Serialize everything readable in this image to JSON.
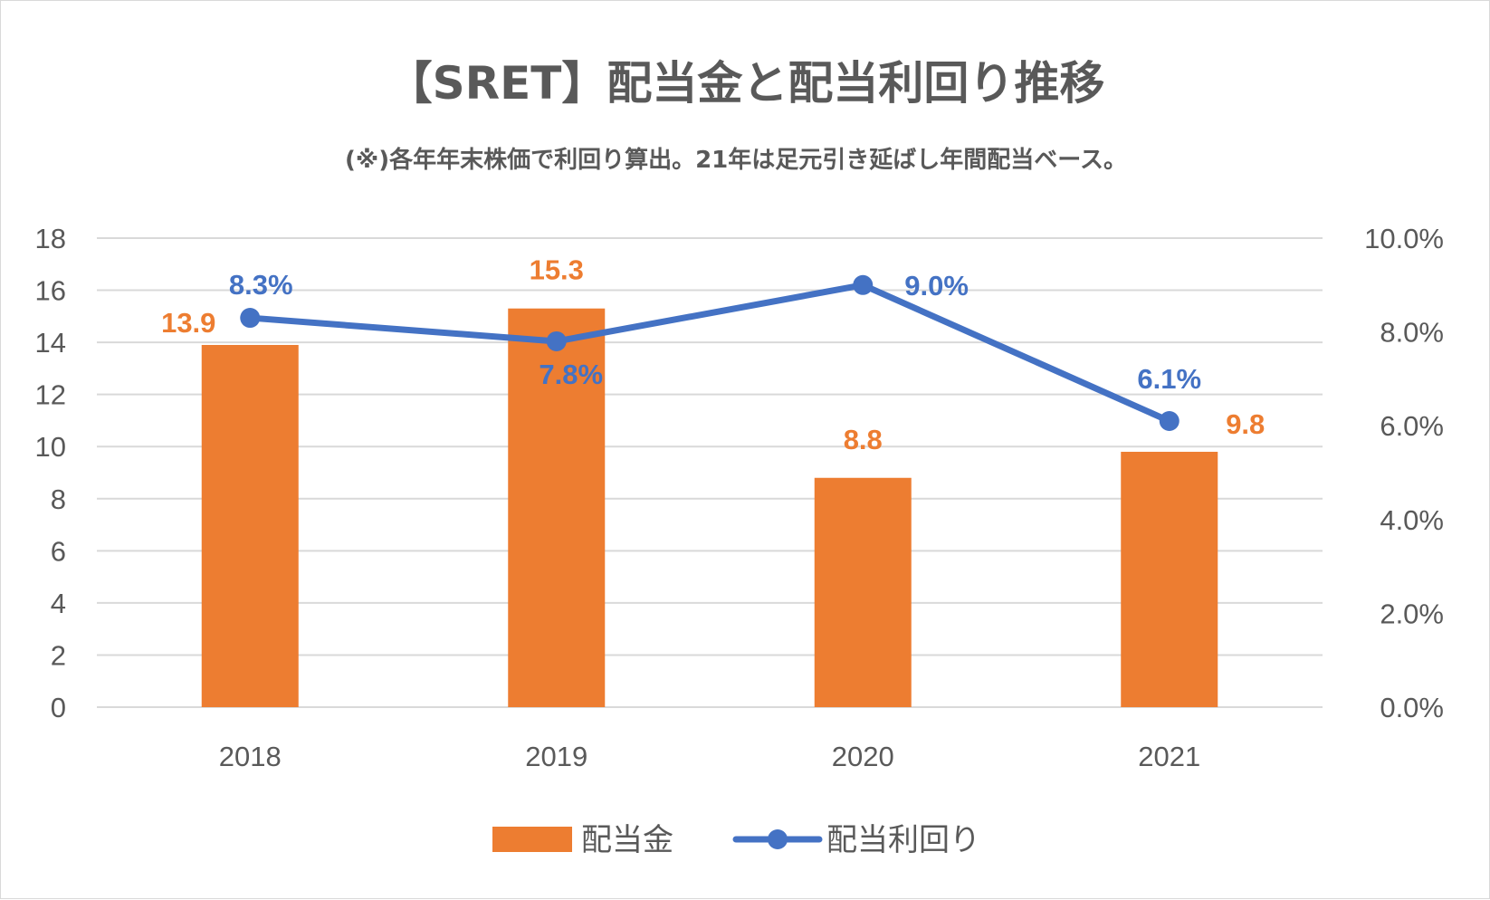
{
  "colors": {
    "bar": "#ED7D31",
    "line": "#4472C4",
    "grid": "#d9d9d9",
    "text": "#595959"
  },
  "chart_data": {
    "type": "bar",
    "title": "【SRET】配当金と配当利回り推移",
    "subtitle": "(※)各年年末株価で利回り算出。21年は足元引き延ばし年間配当ベース。",
    "categories": [
      "2018",
      "2019",
      "2020",
      "2021"
    ],
    "series": [
      {
        "name": "配当金",
        "type": "bar",
        "axis": "left",
        "values": [
          13.9,
          15.3,
          8.8,
          9.8
        ],
        "labels": [
          "13.9",
          "15.3",
          "8.8",
          "9.8"
        ]
      },
      {
        "name": "配当利回り",
        "type": "line",
        "axis": "right",
        "values": [
          8.3,
          7.8,
          9.0,
          6.1
        ],
        "labels": [
          "8.3%",
          "7.8%",
          "9.0%",
          "6.1%"
        ]
      }
    ],
    "y_left": {
      "range": [
        0,
        18
      ],
      "ticks": [
        "0",
        "2",
        "4",
        "6",
        "8",
        "10",
        "12",
        "14",
        "16",
        "18"
      ]
    },
    "y_right": {
      "range": [
        0,
        10
      ],
      "ticks": [
        "0.0%",
        "2.0%",
        "4.0%",
        "6.0%",
        "8.0%",
        "10.0%"
      ]
    },
    "grid": true,
    "legend_position": "bottom"
  }
}
